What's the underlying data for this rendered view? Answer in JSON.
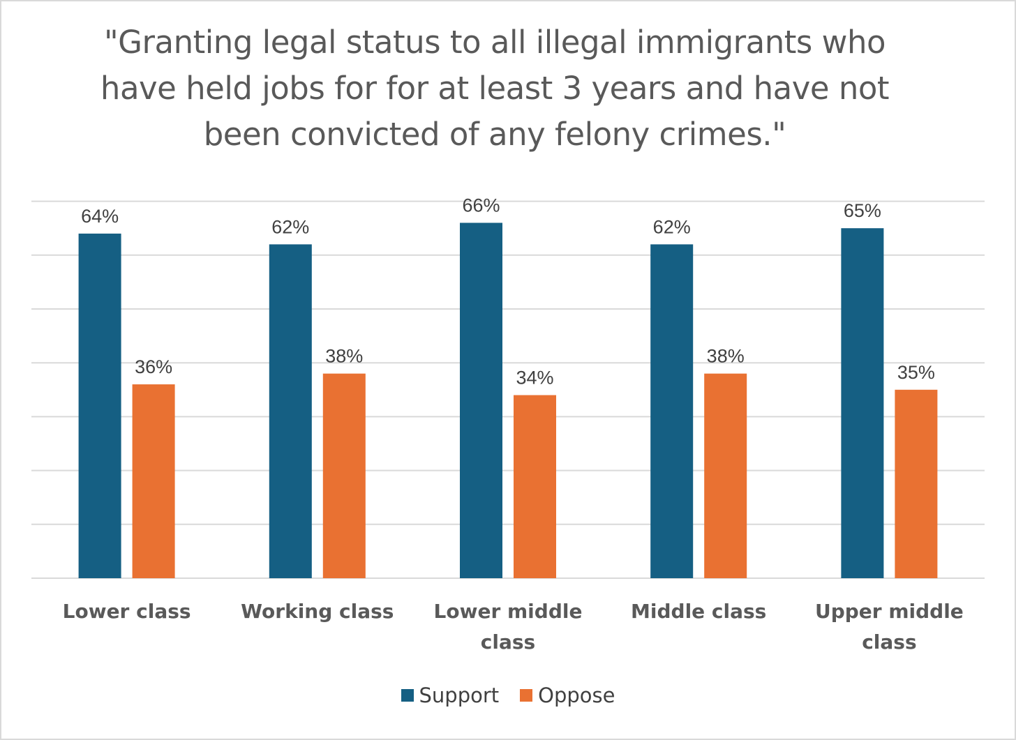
{
  "chart_data": {
    "type": "bar",
    "title": "\"Granting legal status to all illegal immigrants who have held jobs for for at least 3 years and have not been convicted of any felony crimes.\"",
    "categories": [
      [
        "Lower class"
      ],
      [
        "Working class"
      ],
      [
        "Lower middle",
        "class"
      ],
      [
        "Middle class"
      ],
      [
        "Upper middle",
        "class"
      ]
    ],
    "series": [
      {
        "name": "Support",
        "color": "#155f83",
        "values": [
          64,
          62,
          66,
          62,
          65
        ],
        "labels": [
          "64%",
          "62%",
          "66%",
          "62%",
          "65%"
        ]
      },
      {
        "name": "Oppose",
        "color": "#e97132",
        "values": [
          36,
          38,
          34,
          38,
          35
        ],
        "labels": [
          "36%",
          "38%",
          "34%",
          "38%",
          "35%"
        ]
      }
    ],
    "ylim": [
      0,
      70
    ],
    "y_gridline_step": 10,
    "y_axis_labels_visible": false,
    "grid": true,
    "legend_position": "bottom"
  }
}
